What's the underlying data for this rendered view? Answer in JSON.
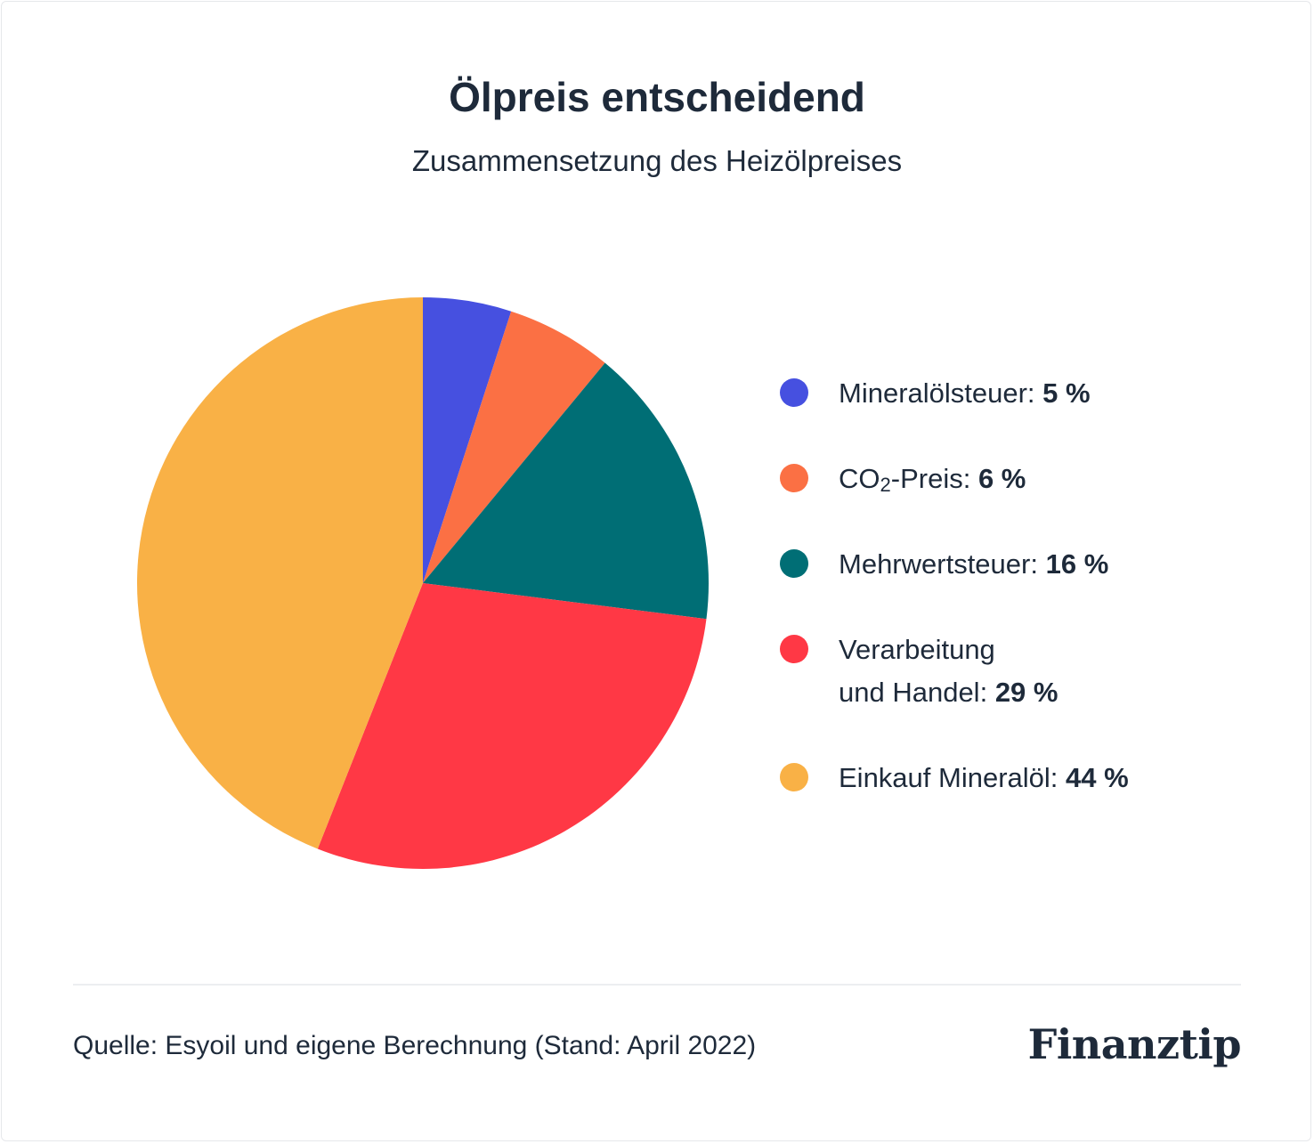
{
  "header": {
    "title": "Ölpreis entscheidend",
    "subtitle": "Zusammensetzung des Heizölpreises"
  },
  "chart_data": {
    "type": "pie",
    "title": "Ölpreis entscheidend",
    "subtitle": "Zusammensetzung des Heizölpreises",
    "unit": "%",
    "legend_position": "right",
    "slices": [
      {
        "label": "Mineralölsteuer",
        "value": 5,
        "color": "#4650e0"
      },
      {
        "label": "CO₂-Preis",
        "value": 6,
        "color": "#fb7044"
      },
      {
        "label": "Mehrwertsteuer",
        "value": 16,
        "color": "#006e75"
      },
      {
        "label": "Verarbeitung und Handel",
        "value": 29,
        "color": "#ff3845"
      },
      {
        "label": "Einkauf Mineralöl",
        "value": 44,
        "color": "#f9b146"
      }
    ]
  },
  "legend": {
    "items": [
      {
        "label": "Mineralölsteuer:",
        "value": "5 %",
        "color": "#4650e0"
      },
      {
        "label_prefix": "CO",
        "label_sub": "2",
        "label_suffix": "-Preis:",
        "value": "6 %",
        "color": "#fb7044"
      },
      {
        "label": "Mehrwertsteuer:",
        "value": "16 %",
        "color": "#006e75"
      },
      {
        "label_line1": "Verarbeitung",
        "label_line2": "und Handel:",
        "value": "29 %",
        "color": "#ff3845"
      },
      {
        "label": "Einkauf Mineralöl:",
        "value": "44 %",
        "color": "#f9b146"
      }
    ]
  },
  "footer": {
    "source": "Quelle: Esyoil und eigene Berechnung (Stand: April 2022)",
    "brand": "Finanztip"
  }
}
